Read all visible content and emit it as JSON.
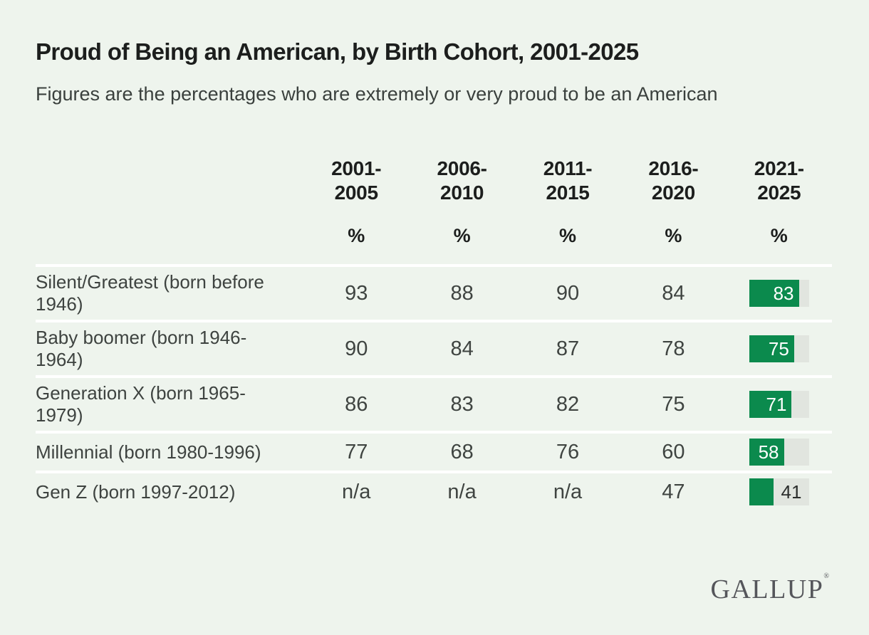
{
  "header": {
    "title": "Proud of Being an American, by Birth Cohort, 2001-2025",
    "subtitle": "Figures are the percentages who are extremely or very proud to be an American"
  },
  "colors": {
    "background": "#eef4ed",
    "bar_green": "#0b8a4d",
    "bar_track": "#e1e5df",
    "row_separator": "#ffffff"
  },
  "chart_data": {
    "type": "table",
    "title": "Proud of Being an American, by Birth Cohort, 2001-2025",
    "subtitle": "Figures are the percentages who are extremely or very proud to be an American",
    "unit_label": "%",
    "columns": [
      "2001-2005",
      "2006-2010",
      "2011-2015",
      "2016-2020",
      "2021-2025"
    ],
    "last_column_rendering": "bar",
    "bar_scale": [
      0,
      100
    ],
    "rows": [
      {
        "label": "Silent/Greatest (born before 1946)",
        "values": [
          "93",
          "88",
          "90",
          "84",
          "83"
        ],
        "bar_value": 83
      },
      {
        "label": "Baby boomer (born 1946-1964)",
        "values": [
          "90",
          "84",
          "87",
          "78",
          "75"
        ],
        "bar_value": 75
      },
      {
        "label": "Generation X (born 1965-1979)",
        "values": [
          "86",
          "83",
          "82",
          "75",
          "71"
        ],
        "bar_value": 71
      },
      {
        "label": "Millennial (born 1980-1996)",
        "values": [
          "77",
          "68",
          "76",
          "60",
          "58"
        ],
        "bar_value": 58
      },
      {
        "label": "Gen Z (born 1997-2012)",
        "values": [
          "n/a",
          "n/a",
          "n/a",
          "47",
          "41"
        ],
        "bar_value": 41
      }
    ]
  },
  "footer": {
    "logo_text": "GALLUP",
    "registered_mark": "®"
  }
}
